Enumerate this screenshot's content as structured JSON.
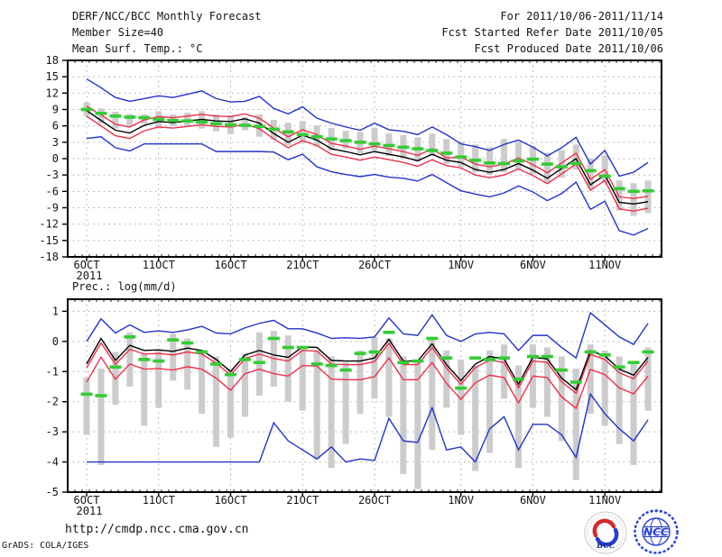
{
  "header": {
    "title": "DERF/NCC/BCC Monthly Forecast",
    "member_size": "Member Size=40",
    "for_range": "For 2011/10/06-2011/11/14",
    "fcst_started": "Fcst Started Refer Date 2011/10/05",
    "fcst_produced": "Fcst Produced Date 2011/10/06"
  },
  "footer": {
    "url": "http://cmdp.ncc.cma.gov.cn",
    "credit": "GrADS: COLA/IGES"
  },
  "logos": {
    "bcc": "BCC",
    "ncc": "NCC"
  },
  "palette": {
    "grid": "#999999",
    "frame": "#000000",
    "bar": "#cccccc",
    "blue": "#2233cc",
    "red": "#ef3048",
    "green": "#33cc33",
    "black": "#000000"
  },
  "chart_data": [
    {
      "type": "line",
      "title": "Mean Surf. Temp.: °C",
      "ylim": [
        -18,
        18
      ],
      "y_ticks": [
        18,
        15,
        12,
        9,
        6,
        3,
        0,
        -3,
        -6,
        -9,
        -12,
        -15,
        -18
      ],
      "x_ticks": [
        {
          "day": 0,
          "label": "6OCT",
          "year": "2011"
        },
        {
          "day": 5,
          "label": "11OCT"
        },
        {
          "day": 10,
          "label": "16OCT"
        },
        {
          "day": 15,
          "label": "21OCT"
        },
        {
          "day": 20,
          "label": "26OCT"
        },
        {
          "day": 26,
          "label": "1NOV"
        },
        {
          "day": 31,
          "label": "6NOV"
        },
        {
          "day": 36,
          "label": "11NOV"
        }
      ],
      "bars": {
        "color": "#cccccc",
        "ranges": [
          [
            7.8,
            10.3
          ],
          [
            6.5,
            9.2
          ],
          [
            5.5,
            8.6
          ],
          [
            6.0,
            8.2
          ],
          [
            6.4,
            8.1
          ],
          [
            5.5,
            8.7
          ],
          [
            6.0,
            8.1
          ],
          [
            5.8,
            8.4
          ],
          [
            5.5,
            8.7
          ],
          [
            5.0,
            8.1
          ],
          [
            4.5,
            7.9
          ],
          [
            5.2,
            7.6
          ],
          [
            4.0,
            8.1
          ],
          [
            3.5,
            7.1
          ],
          [
            2.5,
            6.6
          ],
          [
            2.8,
            6.9
          ],
          [
            2.2,
            6.1
          ],
          [
            1.5,
            5.6
          ],
          [
            1.8,
            5.1
          ],
          [
            1.0,
            4.9
          ],
          [
            1.5,
            5.6
          ],
          [
            0.5,
            4.6
          ],
          [
            0.0,
            4.3
          ],
          [
            -0.5,
            3.9
          ],
          [
            0.5,
            4.6
          ],
          [
            -1.0,
            3.6
          ],
          [
            -1.5,
            3.1
          ],
          [
            -2.5,
            2.6
          ],
          [
            -3.0,
            2.1
          ],
          [
            -2.5,
            3.6
          ],
          [
            -2.0,
            3.1
          ],
          [
            -2.8,
            2.3
          ],
          [
            -4.5,
            1.1
          ],
          [
            -3.5,
            1.6
          ],
          [
            -2.0,
            2.6
          ],
          [
            -5.5,
            0.1
          ],
          [
            -4.5,
            0.6
          ],
          [
            -9.5,
            -4.0
          ],
          [
            -10.5,
            -4.5
          ],
          [
            -10.0,
            -4.0
          ]
        ]
      },
      "series": [
        {
          "name": "ensemble-max",
          "color": "#2233cc",
          "style": "line",
          "values": [
            14.6,
            13.0,
            11.2,
            10.5,
            11.0,
            11.5,
            11.2,
            11.8,
            12.4,
            11.0,
            10.4,
            10.5,
            11.4,
            9.2,
            8.2,
            9.5,
            7.4,
            6.5,
            5.8,
            5.2,
            6.5,
            5.3,
            5.0,
            4.4,
            5.8,
            4.4,
            2.7,
            2.2,
            1.5,
            2.6,
            3.4,
            2.1,
            0.5,
            2.0,
            3.9,
            -1.0,
            1.5,
            -3.2,
            -2.5,
            -0.7
          ]
        },
        {
          "name": "ensemble-min",
          "color": "#2233cc",
          "style": "line",
          "values": [
            3.7,
            4.0,
            2.0,
            1.4,
            2.7,
            2.7,
            2.7,
            2.7,
            2.7,
            1.3,
            1.3,
            1.3,
            1.3,
            1.2,
            -0.2,
            0.8,
            -1.5,
            -2.4,
            -2.9,
            -3.3,
            -2.9,
            -3.4,
            -3.6,
            -4.1,
            -2.9,
            -4.4,
            -5.9,
            -6.5,
            -7.0,
            -6.3,
            -5.0,
            -6.1,
            -7.7,
            -6.4,
            -4.3,
            -9.3,
            -7.8,
            -13.2,
            -14.0,
            -12.8
          ]
        },
        {
          "name": "spread-upper",
          "color": "#ef3048",
          "style": "line",
          "values": [
            9.6,
            8.0,
            6.3,
            5.8,
            7.1,
            7.7,
            7.5,
            7.8,
            8.1,
            7.8,
            7.7,
            8.2,
            7.4,
            5.6,
            4.0,
            5.3,
            4.4,
            2.8,
            2.3,
            1.7,
            2.3,
            1.8,
            1.3,
            0.6,
            1.8,
            0.1,
            0.3,
            -1.0,
            -1.5,
            -1.0,
            0.1,
            -1.1,
            -2.6,
            -0.8,
            1.0,
            -3.8,
            -2.0,
            -7.0,
            -7.3,
            -6.9
          ]
        },
        {
          "name": "spread-lower",
          "color": "#ef3048",
          "style": "line",
          "values": [
            7.8,
            6.0,
            4.2,
            3.7,
            5.1,
            5.8,
            5.6,
            5.9,
            6.2,
            5.9,
            5.8,
            6.3,
            5.5,
            3.6,
            2.0,
            3.3,
            2.4,
            0.8,
            0.3,
            -0.3,
            0.3,
            -0.2,
            -0.7,
            -1.4,
            -0.2,
            -1.3,
            -1.7,
            -3.0,
            -3.5,
            -3.0,
            -1.9,
            -3.1,
            -4.6,
            -2.8,
            -1.0,
            -5.8,
            -4.0,
            -9.2,
            -9.6,
            -9.1
          ]
        },
        {
          "name": "ensemble-mean",
          "color": "#000000",
          "style": "line",
          "values": [
            8.8,
            7.0,
            5.2,
            4.7,
            6.1,
            6.8,
            6.6,
            6.9,
            7.2,
            6.9,
            6.8,
            7.3,
            6.5,
            4.6,
            3.0,
            4.3,
            3.4,
            1.8,
            1.3,
            0.7,
            1.3,
            0.8,
            0.3,
            -0.4,
            0.8,
            -0.3,
            -0.7,
            -2.0,
            -2.5,
            -2.0,
            -0.9,
            -2.1,
            -3.6,
            -1.8,
            0.0,
            -4.8,
            -3.0,
            -8.0,
            -8.3,
            -7.9
          ]
        },
        {
          "name": "observation",
          "color": "#33cc33",
          "style": "dash-markers",
          "values": [
            9.0,
            8.3,
            7.8,
            7.6,
            7.5,
            7.2,
            7.0,
            6.9,
            6.7,
            6.4,
            6.2,
            6.1,
            5.9,
            5.4,
            4.9,
            4.4,
            4.0,
            3.6,
            3.3,
            3.0,
            2.7,
            2.4,
            2.1,
            1.8,
            1.5,
            1.0,
            0.3,
            -0.3,
            -0.8,
            -0.9,
            -0.4,
            -0.1,
            -1.0,
            -1.5,
            -0.9,
            -2.2,
            -3.2,
            -5.5,
            -6.0,
            -5.9
          ]
        }
      ]
    },
    {
      "type": "line",
      "title": "Prec.: log(mm/d)",
      "ylim": [
        -5,
        1.4
      ],
      "y_ticks": [
        1,
        0,
        -1,
        -2,
        -3,
        -4,
        -5
      ],
      "x_ticks": [
        {
          "day": 0,
          "label": "6OCT",
          "year": "2011"
        },
        {
          "day": 5,
          "label": "11OCT"
        },
        {
          "day": 10,
          "label": "16OCT"
        },
        {
          "day": 15,
          "label": "21OCT"
        },
        {
          "day": 20,
          "label": "26OCT"
        },
        {
          "day": 26,
          "label": "1NOV"
        },
        {
          "day": 31,
          "label": "6NOV"
        },
        {
          "day": 36,
          "label": "11NOV"
        }
      ],
      "bars": {
        "color": "#cccccc",
        "ranges": [
          [
            -3.1,
            -1.2
          ],
          [
            -4.1,
            -0.9
          ],
          [
            -2.1,
            -0.35
          ],
          [
            -1.5,
            0.3
          ],
          [
            -2.8,
            -0.4
          ],
          [
            -2.2,
            -0.3
          ],
          [
            -1.3,
            0.25
          ],
          [
            -1.6,
            0.1
          ],
          [
            -2.4,
            -0.3
          ],
          [
            -3.5,
            -0.5
          ],
          [
            -3.2,
            -0.9
          ],
          [
            -2.5,
            -0.4
          ],
          [
            -1.8,
            0.3
          ],
          [
            -1.5,
            0.35
          ],
          [
            -2.0,
            0.2
          ],
          [
            -2.3,
            -0.2
          ],
          [
            -3.9,
            -0.3
          ],
          [
            -4.2,
            -0.5
          ],
          [
            -3.4,
            -0.7
          ],
          [
            -2.4,
            -0.3
          ],
          [
            -1.9,
            0.15
          ],
          [
            -2.5,
            0.1
          ],
          [
            -4.4,
            -0.5
          ],
          [
            -4.9,
            -0.6
          ],
          [
            -3.6,
            0.15
          ],
          [
            -2.2,
            -0.3
          ],
          [
            -3.1,
            -0.6
          ],
          [
            -4.3,
            -0.8
          ],
          [
            -3.7,
            -0.3
          ],
          [
            -1.9,
            -0.1
          ],
          [
            -4.2,
            -0.8
          ],
          [
            -2.2,
            -0.1
          ],
          [
            -2.5,
            -0.2
          ],
          [
            -3.3,
            -0.5
          ],
          [
            -4.6,
            -0.9
          ],
          [
            -2.4,
            -0.1
          ],
          [
            -2.8,
            -0.3
          ],
          [
            -3.4,
            -0.5
          ],
          [
            -4.1,
            -0.7
          ],
          [
            -2.3,
            -0.2
          ]
        ]
      },
      "series": [
        {
          "name": "ensemble-max",
          "color": "#2233cc",
          "style": "line",
          "values": [
            0.0,
            0.75,
            0.28,
            0.55,
            0.3,
            0.35,
            0.3,
            0.38,
            0.5,
            0.28,
            0.25,
            0.45,
            0.6,
            0.7,
            0.42,
            0.42,
            0.28,
            0.1,
            0.12,
            0.1,
            0.15,
            0.78,
            0.25,
            0.2,
            0.88,
            0.2,
            0.0,
            0.25,
            0.3,
            0.25,
            -0.3,
            0.2,
            0.2,
            -0.2,
            -0.55,
            0.95,
            0.55,
            0.15,
            -0.1,
            0.6
          ]
        },
        {
          "name": "ensemble-min",
          "color": "#2233cc",
          "style": "line",
          "values": [
            -4.0,
            -4.0,
            -4.0,
            -4.0,
            -4.0,
            -4.0,
            -4.0,
            -4.0,
            -4.0,
            -4.0,
            -4.0,
            -4.0,
            -4.0,
            -2.7,
            -3.3,
            -3.6,
            -3.9,
            -3.5,
            -4.0,
            -3.9,
            -3.95,
            -2.55,
            -3.3,
            -3.35,
            -2.2,
            -3.6,
            -3.5,
            -4.0,
            -2.9,
            -2.5,
            -3.6,
            -2.75,
            -2.75,
            -3.1,
            -3.85,
            -1.75,
            -2.4,
            -2.9,
            -3.3,
            -2.6
          ]
        },
        {
          "name": "spread-upper",
          "color": "#ef3048",
          "style": "line",
          "values": [
            -0.88,
            -0.05,
            -0.76,
            -0.26,
            -0.42,
            -0.4,
            -0.45,
            -0.35,
            -0.42,
            -0.72,
            -1.12,
            -0.57,
            -0.42,
            -0.57,
            -0.65,
            -0.3,
            -0.32,
            -0.75,
            -0.77,
            -0.77,
            -0.67,
            -0.06,
            -0.77,
            -0.77,
            -0.2,
            -0.89,
            -1.42,
            -0.87,
            -0.62,
            -0.7,
            -1.54,
            -0.65,
            -0.7,
            -1.34,
            -1.72,
            -0.43,
            -0.6,
            -1.04,
            -1.24,
            -0.65
          ]
        },
        {
          "name": "spread-lower",
          "color": "#ef3048",
          "style": "line",
          "values": [
            -1.35,
            -0.52,
            -1.25,
            -0.75,
            -0.92,
            -0.9,
            -0.95,
            -0.84,
            -0.92,
            -1.22,
            -1.62,
            -1.07,
            -0.92,
            -1.07,
            -1.15,
            -0.8,
            -0.82,
            -1.25,
            -1.27,
            -1.27,
            -1.17,
            -0.55,
            -1.27,
            -1.27,
            -0.7,
            -1.39,
            -1.92,
            -1.37,
            -1.12,
            -1.2,
            -2.04,
            -1.15,
            -1.2,
            -1.84,
            -2.22,
            -0.93,
            -1.1,
            -1.54,
            -1.74,
            -1.15
          ]
        },
        {
          "name": "ensemble-mean",
          "color": "#000000",
          "style": "line",
          "values": [
            -0.75,
            0.1,
            -0.63,
            -0.13,
            -0.3,
            -0.28,
            -0.33,
            -0.22,
            -0.3,
            -0.6,
            -1.0,
            -0.45,
            -0.3,
            -0.45,
            -0.53,
            -0.18,
            -0.2,
            -0.63,
            -0.65,
            -0.65,
            -0.55,
            0.07,
            -0.65,
            -0.65,
            -0.08,
            -0.77,
            -1.3,
            -0.75,
            -0.5,
            -0.58,
            -1.42,
            -0.53,
            -0.58,
            -1.22,
            -1.6,
            -0.31,
            -0.48,
            -0.92,
            -1.12,
            -0.53
          ]
        },
        {
          "name": "observation",
          "color": "#33cc33",
          "style": "dash-markers",
          "values": [
            -1.75,
            -1.8,
            -0.85,
            0.15,
            -0.6,
            -0.65,
            0.05,
            -0.05,
            -0.35,
            -0.75,
            -1.1,
            -0.6,
            -0.7,
            0.1,
            -0.2,
            -0.2,
            -0.75,
            -0.8,
            -0.95,
            -0.4,
            -0.35,
            0.3,
            -0.7,
            -0.65,
            0.1,
            -0.55,
            -1.55,
            -0.55,
            -0.6,
            -0.55,
            -1.25,
            -0.5,
            -0.5,
            -0.95,
            -1.35,
            -0.35,
            -0.45,
            -0.85,
            -0.7,
            -0.35
          ]
        }
      ]
    }
  ]
}
